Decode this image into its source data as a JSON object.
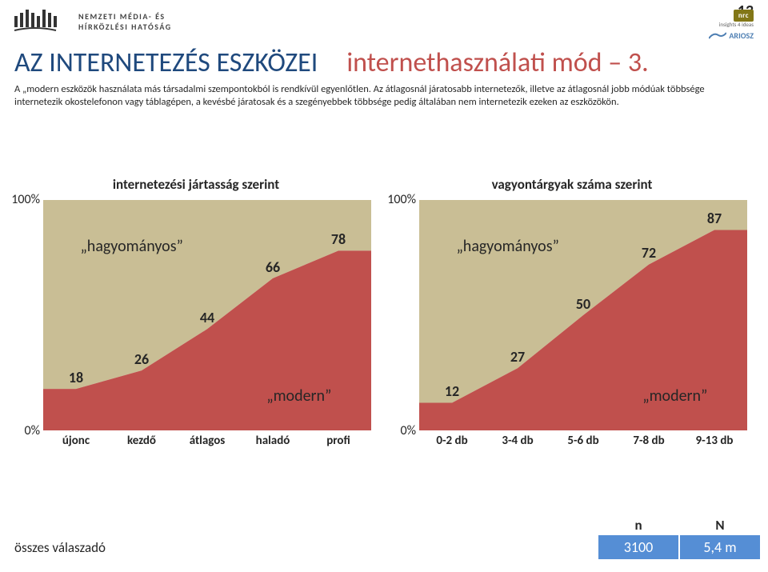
{
  "page_number": "13",
  "logos": {
    "nmhh_line1": "NEMZETI MÉDIA- ÉS",
    "nmhh_line2": "HÍRKÖZLÉSI HATÓSÁG",
    "nrc": "nrc",
    "nrc_sub": "insights 4 ideas",
    "ariosz": "ARIOSZ"
  },
  "title": {
    "left": "AZ INTERNETEZÉS ESZKÖZEI",
    "left_color": "#1f497d",
    "right": "internethasználati mód – 3.",
    "right_color": "#c0504d",
    "fontsize": 34
  },
  "description": "A „modern eszközök használata más társadalmi szempontokból is rendkívül egyenlőtlen. Az átlagosnál járatosabb internetezők, illetve az átlagosnál jobb módúak többsége internetezik okostelefonon vagy táblagépen, a kevésbé járatosak és a szegényebbek többsége pedig általában nem internetezik ezeken az eszközökön.",
  "chart_common": {
    "type": "area-stacked-100",
    "ylim": [
      0,
      100
    ],
    "y_ticks": [
      "0%",
      "100%"
    ],
    "colors": {
      "upper": "#c9be95",
      "lower": "#c0504d"
    },
    "label_upper": "„hagyományos”",
    "label_lower": "„modern”",
    "label_fontsize": 20,
    "value_fontsize": 18,
    "axis_fontsize": 16,
    "category_fontsize": 15
  },
  "chart_left": {
    "title": "internetezési jártasság szerint",
    "categories": [
      "újonc",
      "kezdő",
      "átlagos",
      "haladó",
      "profi"
    ],
    "values_lower": [
      18,
      26,
      44,
      66,
      78
    ]
  },
  "chart_right": {
    "title": "vagyontárgyak száma szerint",
    "categories": [
      "0-2 db",
      "3-4 db",
      "5-6 db",
      "7-8 db",
      "9-13 db"
    ],
    "values_lower": [
      12,
      27,
      50,
      72,
      87
    ]
  },
  "footer": {
    "label": "összes válaszadó",
    "n_header": "n",
    "N_header": "N",
    "n_value": "3100",
    "N_value": "5,4 m",
    "n_bg": "#558ed5",
    "N_bg": "#558ed5"
  }
}
